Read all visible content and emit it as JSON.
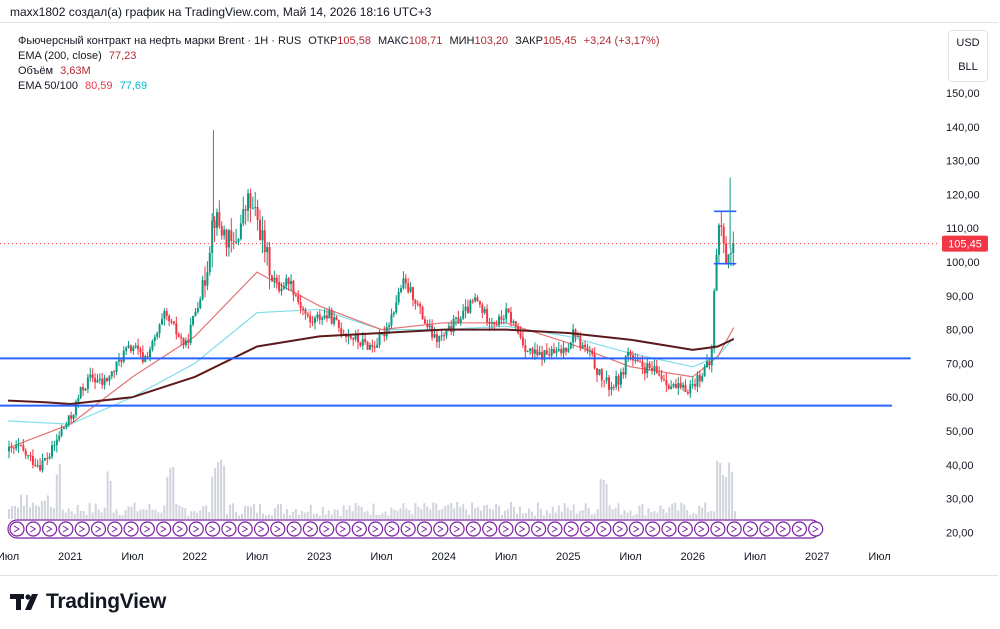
{
  "caption": "maxx1802 создал(а) график на TradingView.com, Май 14, 2026 18:16 UTC+3",
  "legend": {
    "symbol": "Фьючерсный контракт на нефть марки Brent · 1Н · RUS",
    "open_label": "ОТКР",
    "open": "105,58",
    "high_label": "МАКС",
    "high": "108,71",
    "low_label": "МИН",
    "low": "103,20",
    "close_label": "ЗАКР",
    "close": "105,45",
    "change": "+3,24 (+3,17%)",
    "ema200_label": "EMA (200, close)",
    "ema200_value": "77,23",
    "volume_label": "Объём",
    "volume_value": "3,63M",
    "ema50_100_label": "EMA 50/100",
    "ema50_value": "80,59",
    "ema100_value": "77,69"
  },
  "currency": {
    "top": "USD",
    "bottom": "BLL"
  },
  "price_tag": "105,45",
  "brand": "TradingView",
  "colors": {
    "up": "#089981",
    "down": "#f23645",
    "ema200": "#5d1a1a",
    "ema50": "#e57373",
    "ema100": "#80deea",
    "hline": "#2962ff",
    "volume": "#d1d4dc",
    "events": "#7b1fa2"
  },
  "chart_data": {
    "type": "candlestick",
    "title": "Фьючерсный контракт на нефть марки Brent · 1Н · RUS",
    "y_axis": {
      "ticks": [
        "150,00",
        "140,00",
        "130,00",
        "120,00",
        "110,00",
        "100,00",
        "90,00",
        "80,00",
        "70,00",
        "60,00",
        "50,00",
        "40,00",
        "30,00",
        "20,00"
      ],
      "min": 20,
      "max": 150
    },
    "x_axis": {
      "ticks": [
        {
          "t": 2020.5,
          "label": "Июл"
        },
        {
          "t": 2021.0,
          "label": "2021"
        },
        {
          "t": 2021.5,
          "label": "Июл"
        },
        {
          "t": 2022.0,
          "label": "2022"
        },
        {
          "t": 2022.5,
          "label": "Июл"
        },
        {
          "t": 2023.0,
          "label": "2023"
        },
        {
          "t": 2023.5,
          "label": "Июл"
        },
        {
          "t": 2024.0,
          "label": "2024"
        },
        {
          "t": 2024.5,
          "label": "Июл"
        },
        {
          "t": 2025.0,
          "label": "2025"
        },
        {
          "t": 2025.5,
          "label": "Июл"
        },
        {
          "t": 2026.0,
          "label": "2026"
        },
        {
          "t": 2026.5,
          "label": "Июл"
        },
        {
          "t": 2027.0,
          "label": "2027"
        },
        {
          "t": 2027.5,
          "label": "Июл"
        }
      ],
      "min": 2020.5,
      "max": 2027.8
    },
    "price_path": [
      [
        2020.5,
        44
      ],
      [
        2020.58,
        45
      ],
      [
        2020.66,
        42
      ],
      [
        2020.75,
        40
      ],
      [
        2020.83,
        43
      ],
      [
        2020.92,
        50
      ],
      [
        2021.0,
        54
      ],
      [
        2021.08,
        62
      ],
      [
        2021.16,
        66
      ],
      [
        2021.25,
        64
      ],
      [
        2021.33,
        67
      ],
      [
        2021.42,
        73
      ],
      [
        2021.5,
        75
      ],
      [
        2021.58,
        71
      ],
      [
        2021.66,
        76
      ],
      [
        2021.75,
        84
      ],
      [
        2021.83,
        80
      ],
      [
        2021.92,
        75
      ],
      [
        2022.0,
        86
      ],
      [
        2022.08,
        96
      ],
      [
        2022.14,
        114
      ],
      [
        2022.2,
        110
      ],
      [
        2022.3,
        104
      ],
      [
        2022.42,
        118
      ],
      [
        2022.5,
        112
      ],
      [
        2022.58,
        100
      ],
      [
        2022.66,
        92
      ],
      [
        2022.75,
        95
      ],
      [
        2022.83,
        88
      ],
      [
        2022.92,
        82
      ],
      [
        2023.0,
        84
      ],
      [
        2023.08,
        84
      ],
      [
        2023.16,
        80
      ],
      [
        2023.25,
        78
      ],
      [
        2023.33,
        76
      ],
      [
        2023.42,
        75
      ],
      [
        2023.5,
        78
      ],
      [
        2023.58,
        85
      ],
      [
        2023.66,
        94
      ],
      [
        2023.75,
        90
      ],
      [
        2023.83,
        83
      ],
      [
        2023.92,
        77
      ],
      [
        2024.0,
        78
      ],
      [
        2024.08,
        82
      ],
      [
        2024.16,
        85
      ],
      [
        2024.25,
        89
      ],
      [
        2024.33,
        84
      ],
      [
        2024.42,
        82
      ],
      [
        2024.5,
        85
      ],
      [
        2024.58,
        80
      ],
      [
        2024.66,
        74
      ],
      [
        2024.75,
        72
      ],
      [
        2024.83,
        73
      ],
      [
        2024.92,
        73
      ],
      [
        2025.0,
        76
      ],
      [
        2025.04,
        80
      ],
      [
        2025.08,
        76
      ],
      [
        2025.16,
        73
      ],
      [
        2025.25,
        66
      ],
      [
        2025.33,
        63
      ],
      [
        2025.42,
        66
      ],
      [
        2025.47,
        74
      ],
      [
        2025.52,
        70
      ],
      [
        2025.58,
        69
      ],
      [
        2025.66,
        68
      ],
      [
        2025.75,
        66
      ],
      [
        2025.83,
        63
      ],
      [
        2025.92,
        62
      ],
      [
        2026.0,
        64
      ],
      [
        2026.08,
        68
      ],
      [
        2026.14,
        70
      ],
      [
        2026.17,
        96
      ],
      [
        2026.19,
        108
      ],
      [
        2026.22,
        112
      ],
      [
        2026.25,
        100
      ],
      [
        2026.28,
        104
      ],
      [
        2026.33,
        105.45
      ]
    ],
    "volume_spikes": [
      [
        2020.9,
        40
      ],
      [
        2021.3,
        36
      ],
      [
        2021.8,
        38
      ],
      [
        2022.2,
        46
      ],
      [
        2022.15,
        42
      ],
      [
        2025.28,
        34
      ],
      [
        2026.2,
        44
      ],
      [
        2026.25,
        40
      ],
      [
        2026.3,
        42
      ]
    ],
    "ema200": [
      [
        2020.5,
        59
      ],
      [
        2020.8,
        58.5
      ],
      [
        2021.0,
        58
      ],
      [
        2021.5,
        60
      ],
      [
        2022.0,
        66
      ],
      [
        2022.5,
        75
      ],
      [
        2023.0,
        78
      ],
      [
        2023.5,
        79
      ],
      [
        2024.0,
        80
      ],
      [
        2024.5,
        80
      ],
      [
        2025.0,
        79
      ],
      [
        2025.5,
        77
      ],
      [
        2026.0,
        74
      ],
      [
        2026.2,
        75
      ],
      [
        2026.33,
        77.23
      ]
    ],
    "ema50": [
      [
        2020.5,
        45
      ],
      [
        2021.0,
        52
      ],
      [
        2021.5,
        66
      ],
      [
        2022.0,
        78
      ],
      [
        2022.5,
        97
      ],
      [
        2022.75,
        92
      ],
      [
        2023.0,
        87
      ],
      [
        2023.5,
        80
      ],
      [
        2024.0,
        82
      ],
      [
        2024.5,
        82
      ],
      [
        2025.0,
        76
      ],
      [
        2025.5,
        69
      ],
      [
        2026.0,
        66
      ],
      [
        2026.2,
        72
      ],
      [
        2026.33,
        80.59
      ]
    ],
    "ema100": [
      [
        2020.5,
        53
      ],
      [
        2021.0,
        52
      ],
      [
        2021.5,
        60
      ],
      [
        2022.0,
        70
      ],
      [
        2022.5,
        85
      ],
      [
        2023.0,
        86
      ],
      [
        2023.5,
        80
      ],
      [
        2024.0,
        80
      ],
      [
        2024.5,
        81
      ],
      [
        2025.0,
        78
      ],
      [
        2025.5,
        73
      ],
      [
        2026.0,
        69
      ],
      [
        2026.2,
        72
      ],
      [
        2026.33,
        77.69
      ]
    ],
    "horizontal_lines": [
      {
        "y": 71.5,
        "x_end": 2027.75
      },
      {
        "y": 57.5,
        "x_end": 2027.6
      },
      {
        "y": 115,
        "x_start": 2026.17,
        "x_end": 2026.35
      },
      {
        "y": 99.5,
        "x_start": 2026.17,
        "x_end": 2026.35
      }
    ],
    "last_price": 105.45
  }
}
